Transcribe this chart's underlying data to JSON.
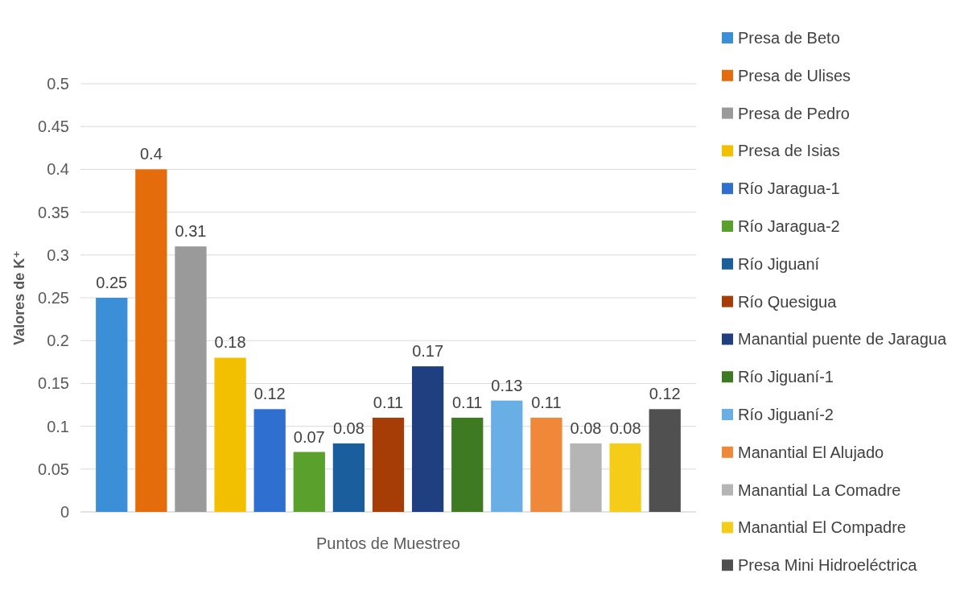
{
  "chart_data": {
    "type": "bar",
    "ylabel": "Valores de K⁺",
    "categories": [
      "Puntos de Muestreo"
    ],
    "series": [
      {
        "name": "Presa de Beto",
        "color": "#3a8fd6",
        "values": [
          0.25
        ]
      },
      {
        "name": "Presa de Ulises",
        "color": "#e46c0a",
        "values": [
          0.4
        ]
      },
      {
        "name": "Presa de Pedro",
        "color": "#9a9a9a",
        "values": [
          0.31
        ]
      },
      {
        "name": "Presa de Isias",
        "color": "#f2c000",
        "values": [
          0.18
        ]
      },
      {
        "name": "Río Jaragua-1",
        "color": "#2f6fd0",
        "values": [
          0.12
        ]
      },
      {
        "name": "Río Jaragua-2",
        "color": "#5aa02c",
        "values": [
          0.07
        ]
      },
      {
        "name": "Río Jiguaní",
        "color": "#1a5e9e",
        "values": [
          0.08
        ]
      },
      {
        "name": "Río Quesigua",
        "color": "#a63c06",
        "values": [
          0.11
        ]
      },
      {
        "name": "Manantial puente de Jaragua",
        "color": "#1f3f80",
        "values": [
          0.17
        ]
      },
      {
        "name": "Río Jiguaní-1",
        "color": "#3d7a22",
        "values": [
          0.11
        ]
      },
      {
        "name": "Río Jiguaní-2",
        "color": "#6aaee6",
        "values": [
          0.13
        ]
      },
      {
        "name": "Manantial El Alujado",
        "color": "#f0883a",
        "values": [
          0.11
        ]
      },
      {
        "name": "Manantial La Comadre",
        "color": "#b5b5b5",
        "values": [
          0.08
        ]
      },
      {
        "name": "Manantial El Compadre",
        "color": "#f5cc18",
        "values": [
          0.08
        ]
      },
      {
        "name": "Presa Mini Hidroeléctrica",
        "color": "#505050",
        "values": [
          0.12
        ]
      }
    ],
    "ylim": [
      0,
      0.5
    ],
    "yticks": [
      0,
      0.05,
      0.1,
      0.15,
      0.2,
      0.25,
      0.3,
      0.35,
      0.4,
      0.45,
      0.5
    ],
    "grid": "y",
    "legend": "right",
    "data_labels": true
  }
}
